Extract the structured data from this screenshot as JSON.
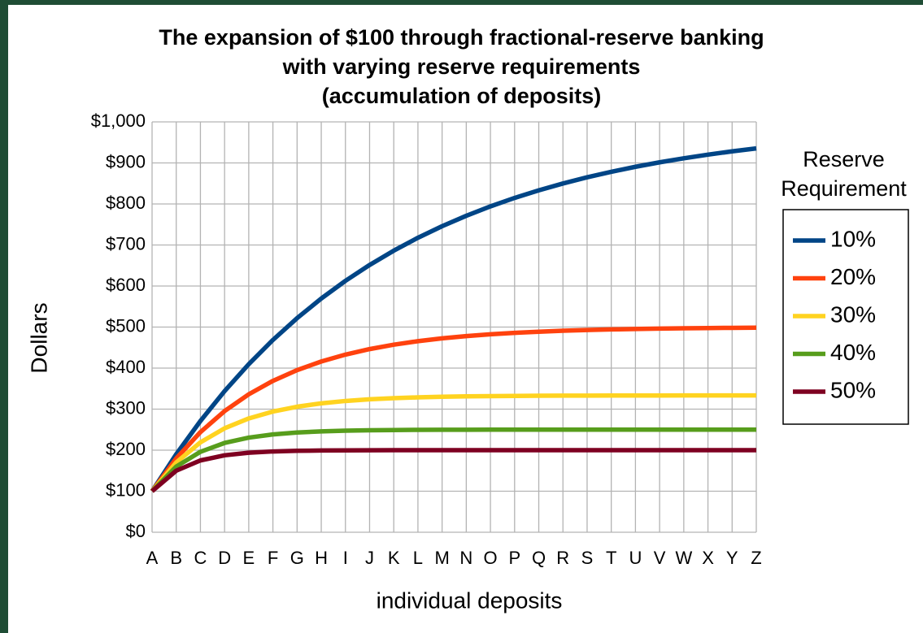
{
  "chart_data": {
    "type": "line",
    "title": "The expansion of $100 through fractional-reserve banking\nwith varying reserve requirements\n(accumulation of deposits)",
    "x_label": "individual deposits",
    "y_label": "Dollars",
    "legend_title": "Reserve\nRequirement",
    "categories": [
      "A",
      "B",
      "C",
      "D",
      "E",
      "F",
      "G",
      "H",
      "I",
      "J",
      "K",
      "L",
      "M",
      "N",
      "O",
      "P",
      "Q",
      "R",
      "S",
      "T",
      "U",
      "V",
      "W",
      "X",
      "Y",
      "Z"
    ],
    "ylim": [
      0,
      1000
    ],
    "yticks": [
      {
        "value": 0,
        "label": "$0"
      },
      {
        "value": 100,
        "label": "$100"
      },
      {
        "value": 200,
        "label": "$200"
      },
      {
        "value": 300,
        "label": "$300"
      },
      {
        "value": 400,
        "label": "$400"
      },
      {
        "value": 500,
        "label": "$500"
      },
      {
        "value": 600,
        "label": "$600"
      },
      {
        "value": 700,
        "label": "$700"
      },
      {
        "value": 800,
        "label": "$800"
      },
      {
        "value": 900,
        "label": "$900"
      },
      {
        "value": 1000,
        "label": "$1,000"
      }
    ],
    "grid": true,
    "legend": "right",
    "series": [
      {
        "name": "10%",
        "color": "#004586",
        "values": [
          100,
          190,
          271,
          343.9,
          409.5,
          468.6,
          521.7,
          569.5,
          612.6,
          651.3,
          686.2,
          717.6,
          745.8,
          771.2,
          794.1,
          814.7,
          833.2,
          849.9,
          864.9,
          878.4,
          890.6,
          901.5,
          911.3,
          920.2,
          928.2,
          935.4
        ]
      },
      {
        "name": "20%",
        "color": "#ff420e",
        "values": [
          100,
          180,
          244,
          295.2,
          336.2,
          368.9,
          395.1,
          416.1,
          432.9,
          446.3,
          457.1,
          465.6,
          472.5,
          478.0,
          482.4,
          485.9,
          488.7,
          491.0,
          492.8,
          494.2,
          495.4,
          496.3,
          497.0,
          497.6,
          498.1,
          498.5
        ]
      },
      {
        "name": "30%",
        "color": "#ffd320",
        "values": [
          100,
          170,
          219,
          253.3,
          277.3,
          294.1,
          305.9,
          314.1,
          319.9,
          323.9,
          326.8,
          328.7,
          330.1,
          331.1,
          331.8,
          332.2,
          332.6,
          332.8,
          333.0,
          333.1,
          333.2,
          333.2,
          333.3,
          333.3,
          333.3,
          333.3
        ]
      },
      {
        "name": "40%",
        "color": "#579d1c",
        "values": [
          100,
          160,
          196,
          217.6,
          230.6,
          238.4,
          243.0,
          245.8,
          247.5,
          248.5,
          249.1,
          249.5,
          249.7,
          249.8,
          249.9,
          249.9,
          250,
          250,
          250,
          250,
          250,
          250,
          250,
          250,
          250,
          250
        ]
      },
      {
        "name": "50%",
        "color": "#7e0021",
        "values": [
          100,
          150,
          175,
          187.5,
          193.8,
          196.9,
          198.4,
          199.2,
          199.6,
          199.8,
          199.9,
          200,
          200,
          200,
          200,
          200,
          200,
          200,
          200,
          200,
          200,
          200,
          200,
          200,
          200,
          200
        ]
      }
    ]
  }
}
